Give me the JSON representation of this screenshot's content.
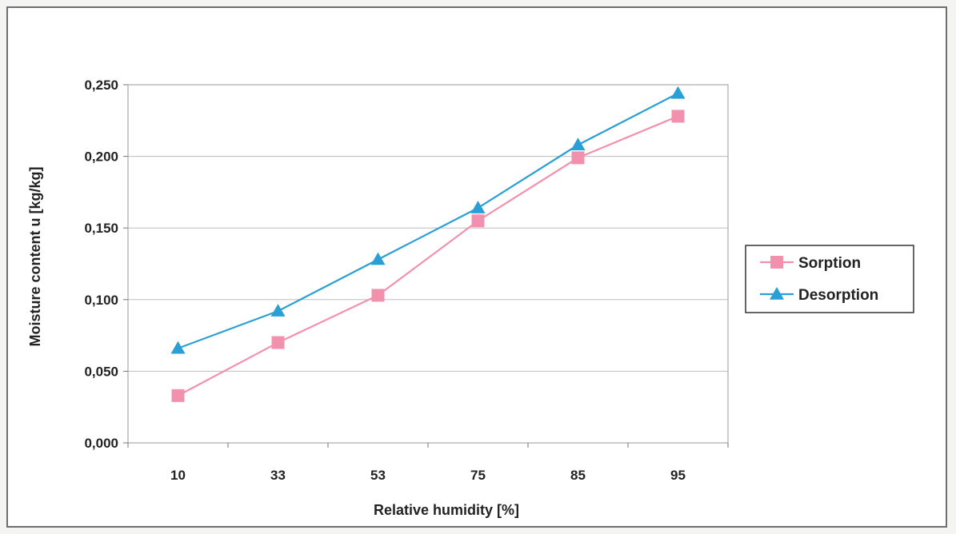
{
  "chart_data": {
    "type": "line",
    "categories": [
      "10",
      "33",
      "53",
      "75",
      "85",
      "95"
    ],
    "series": [
      {
        "name": "Sorption",
        "values": [
          0.033,
          0.07,
          0.103,
          0.155,
          0.199,
          0.228
        ],
        "color": "#f291ad",
        "marker": "square"
      },
      {
        "name": "Desorption",
        "values": [
          0.066,
          0.092,
          0.128,
          0.164,
          0.208,
          0.244
        ],
        "color": "#2a9fd6",
        "marker": "triangle"
      }
    ],
    "xlabel": "Relative humidity [%]",
    "ylabel": "Moisture content u [kg/kg]",
    "ylim": [
      0,
      0.25
    ],
    "yticks": [
      "0,000",
      "0,050",
      "0,100",
      "0,150",
      "0,200",
      "0,250"
    ],
    "grid": true,
    "legend": "right"
  }
}
